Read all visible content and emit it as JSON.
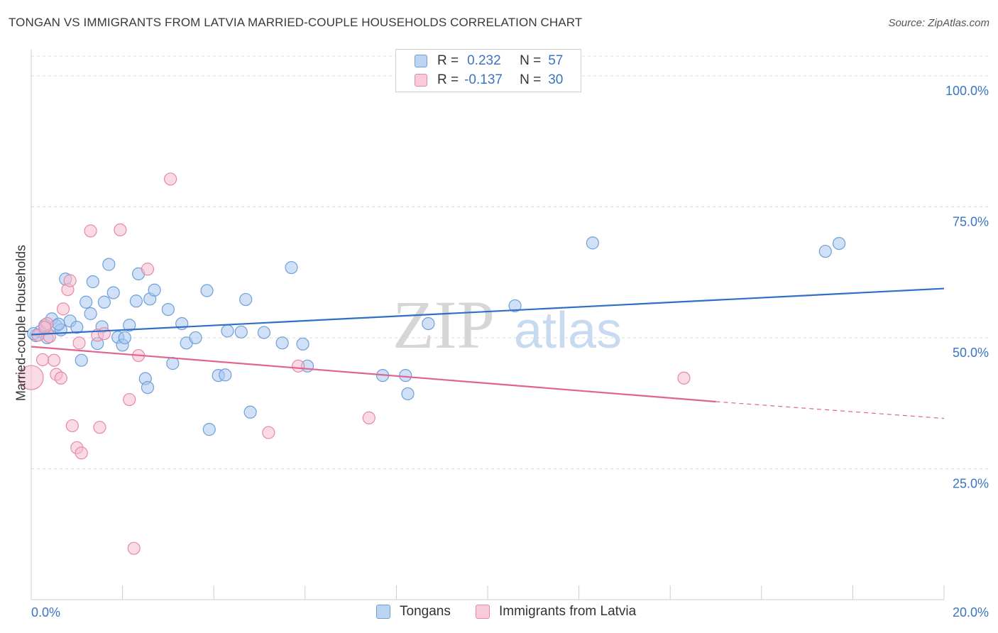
{
  "title": "TONGAN VS IMMIGRANTS FROM LATVIA MARRIED-COUPLE HOUSEHOLDS CORRELATION CHART",
  "source": "Source: ZipAtlas.com",
  "legend": {
    "rows": [
      {
        "r_label": "R =",
        "r_value": "0.232",
        "n_label": "N =",
        "n_value": "57"
      },
      {
        "r_label": "R =",
        "r_value": "-0.137",
        "n_label": "N =",
        "n_value": "30"
      }
    ]
  },
  "bottom_legend": [
    "Tongans",
    "Immigrants from Latvia"
  ],
  "watermark": {
    "zip": "ZIP",
    "atlas": "atlas"
  },
  "colors": {
    "blue_fill": "#a9c8f0",
    "blue_stroke": "#6f9fd8",
    "blue_line": "#2f6fc6",
    "pink_fill": "#f6bccd",
    "pink_stroke": "#e58aa6",
    "pink_line": "#e0648f",
    "axis_text": "#3a74c4",
    "grid": "#d9d9d9"
  },
  "chart_data": {
    "type": "scatter",
    "title": "TONGAN VS IMMIGRANTS FROM LATVIA MARRIED-COUPLE HOUSEHOLDS CORRELATION CHART",
    "xlabel": "",
    "ylabel": "Married-couple Households",
    "xlim": [
      0,
      20
    ],
    "ylim": [
      0,
      105
    ],
    "x_tick_labels": [
      "0.0%",
      "20.0%"
    ],
    "y_ticks": [
      25,
      50,
      75,
      100
    ],
    "y_tick_labels": [
      "25.0%",
      "50.0%",
      "75.0%",
      "100.0%"
    ],
    "grid": true,
    "legend_position": "top-center",
    "series": [
      {
        "name": "Tongans",
        "r": 0.232,
        "n": 57,
        "trend": {
          "x0": 0.0,
          "y0": 50.6,
          "x1": 20.0,
          "y1": 59.4
        },
        "points": [
          [
            0.1,
            50.4
          ],
          [
            0.2,
            51.2
          ],
          [
            0.3,
            52.4
          ],
          [
            0.35,
            50.0
          ],
          [
            0.45,
            53.6
          ],
          [
            0.55,
            52.3
          ],
          [
            0.65,
            51.5
          ],
          [
            0.75,
            61.2
          ],
          [
            0.85,
            53.2
          ],
          [
            1.0,
            52.0
          ],
          [
            1.1,
            45.7
          ],
          [
            1.2,
            56.8
          ],
          [
            1.3,
            54.6
          ],
          [
            1.35,
            60.7
          ],
          [
            1.45,
            48.9
          ],
          [
            1.55,
            52.1
          ],
          [
            1.6,
            56.8
          ],
          [
            1.7,
            64.0
          ],
          [
            1.8,
            58.6
          ],
          [
            1.9,
            50.1
          ],
          [
            2.0,
            48.6
          ],
          [
            2.05,
            50.0
          ],
          [
            2.15,
            52.4
          ],
          [
            2.3,
            57.0
          ],
          [
            2.35,
            62.2
          ],
          [
            2.5,
            42.2
          ],
          [
            2.55,
            40.5
          ],
          [
            2.6,
            57.4
          ],
          [
            2.7,
            59.1
          ],
          [
            3.0,
            55.4
          ],
          [
            3.1,
            45.1
          ],
          [
            3.3,
            52.7
          ],
          [
            3.4,
            49.0
          ],
          [
            3.6,
            50.0
          ],
          [
            3.85,
            59.0
          ],
          [
            3.9,
            32.5
          ],
          [
            4.1,
            42.8
          ],
          [
            4.25,
            42.9
          ],
          [
            4.3,
            51.3
          ],
          [
            4.6,
            51.1
          ],
          [
            4.7,
            57.3
          ],
          [
            4.8,
            35.8
          ],
          [
            5.1,
            51.0
          ],
          [
            5.5,
            49.0
          ],
          [
            5.7,
            63.4
          ],
          [
            5.95,
            48.8
          ],
          [
            6.05,
            44.6
          ],
          [
            7.7,
            42.8
          ],
          [
            8.2,
            42.8
          ],
          [
            8.25,
            39.3
          ],
          [
            8.7,
            52.7
          ],
          [
            10.6,
            56.1
          ],
          [
            12.3,
            68.1
          ],
          [
            17.4,
            66.5
          ],
          [
            17.7,
            68.0
          ],
          [
            0.05,
            50.8
          ],
          [
            0.6,
            52.6
          ]
        ]
      },
      {
        "name": "Immigrants from Latvia",
        "r": -0.137,
        "n": 30,
        "trend": {
          "x0": 0.0,
          "y0": 48.3,
          "x1": 15.0,
          "y1": 37.8,
          "dash_x1": 20.0,
          "dash_y1": 34.6
        },
        "points": [
          [
            0.0,
            42.4
          ],
          [
            0.15,
            50.5
          ],
          [
            0.25,
            45.8
          ],
          [
            0.35,
            52.7
          ],
          [
            0.5,
            45.7
          ],
          [
            0.55,
            43.0
          ],
          [
            0.65,
            42.3
          ],
          [
            0.7,
            55.5
          ],
          [
            0.8,
            59.2
          ],
          [
            0.85,
            60.9
          ],
          [
            0.9,
            33.2
          ],
          [
            1.0,
            29.0
          ],
          [
            1.05,
            49.0
          ],
          [
            1.1,
            28.0
          ],
          [
            1.3,
            70.4
          ],
          [
            1.45,
            50.5
          ],
          [
            1.5,
            32.9
          ],
          [
            1.6,
            50.8
          ],
          [
            1.95,
            70.6
          ],
          [
            2.15,
            38.2
          ],
          [
            2.25,
            9.8
          ],
          [
            2.35,
            46.6
          ],
          [
            2.55,
            63.1
          ],
          [
            3.05,
            80.3
          ],
          [
            5.2,
            31.9
          ],
          [
            5.85,
            44.6
          ],
          [
            7.4,
            34.7
          ],
          [
            14.3,
            42.3
          ],
          [
            0.4,
            50.2
          ],
          [
            0.3,
            52.0
          ]
        ]
      }
    ]
  }
}
